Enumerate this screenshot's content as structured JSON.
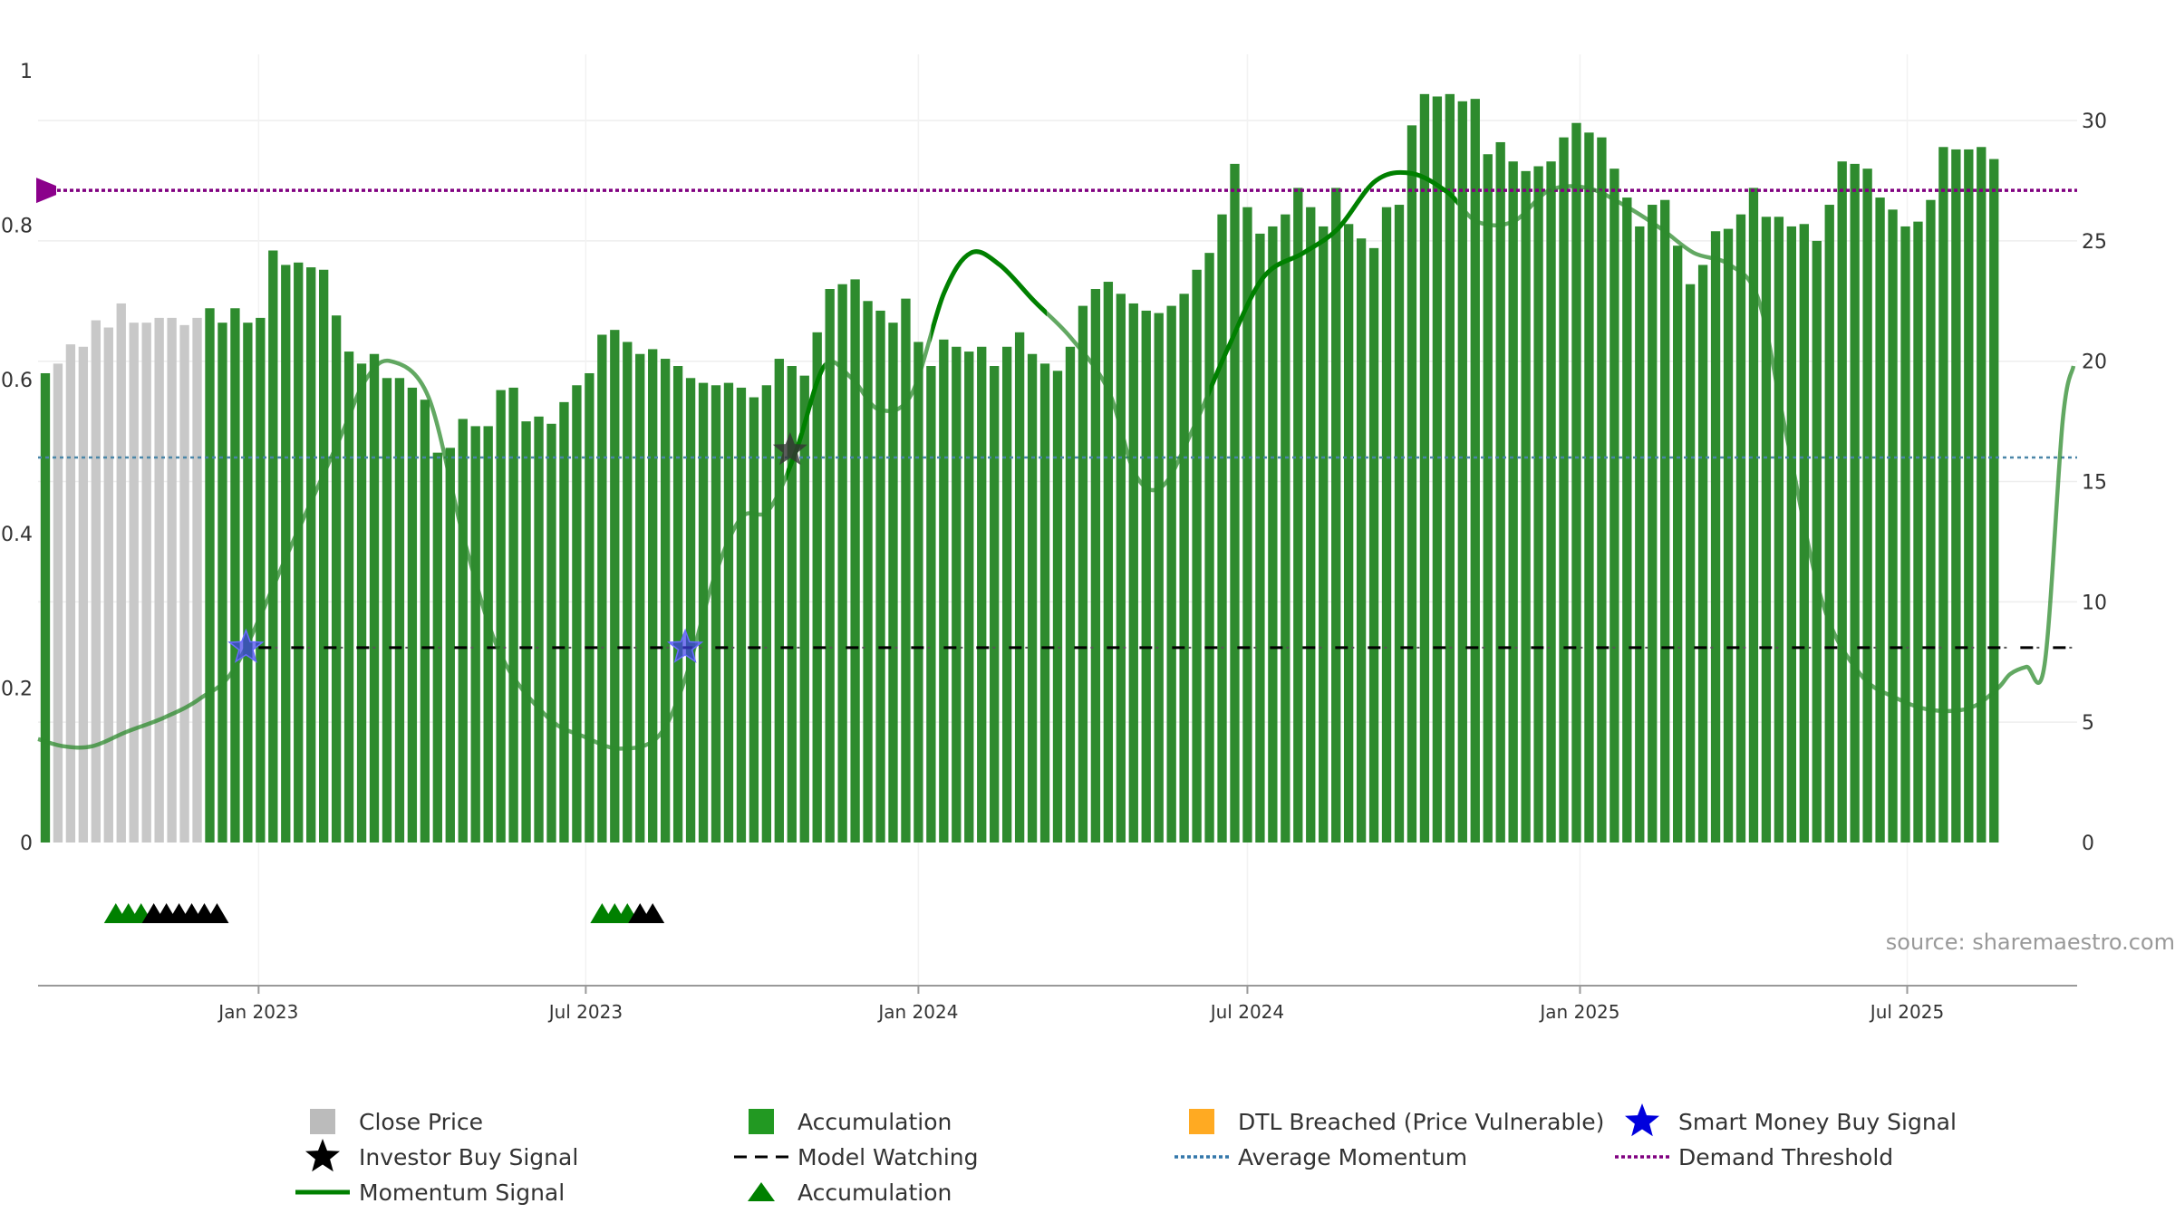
{
  "chart_data": {
    "type": "bar",
    "source_text": "source: sharemaestro.com",
    "y_left": {
      "ticks": [
        0,
        0.2,
        0.4,
        0.6,
        0.8,
        1
      ],
      "tick_labels": [
        "0",
        "0.2",
        "0.4",
        "0.6",
        "0.8",
        "1"
      ],
      "range": [
        0,
        1
      ]
    },
    "y_right": {
      "ticks": [
        0,
        5,
        10,
        15,
        20,
        25,
        30
      ],
      "tick_labels": [
        "0",
        "5",
        "10",
        "15",
        "20",
        "25",
        "30"
      ],
      "range": [
        0,
        32.75
      ]
    },
    "x_range": [
      "2022-09-01",
      "2025-10-03"
    ],
    "x_ticks": [
      {
        "date": "2023-01-01",
        "label": "Jan 2023"
      },
      {
        "date": "2023-07-01",
        "label": "Jul 2023"
      },
      {
        "date": "2024-01-01",
        "label": "Jan 2024"
      },
      {
        "date": "2024-07-01",
        "label": "Jul 2024"
      },
      {
        "date": "2025-01-01",
        "label": "Jan 2025"
      },
      {
        "date": "2025-07-01",
        "label": "Jul 2025"
      }
    ],
    "bar_start_date": "2022-09-05",
    "bar_interval_days": 7,
    "close_price": [
      19.5,
      19.9,
      20.7,
      20.6,
      21.7,
      21.4,
      22.4,
      21.6,
      21.6,
      21.8,
      21.8,
      21.5,
      21.8,
      22.2,
      21.6,
      22.2,
      21.6,
      21.8,
      24.6,
      24.0,
      24.1,
      23.9,
      23.8,
      21.9,
      20.4,
      19.9,
      20.3,
      19.3,
      19.3,
      18.9,
      18.4,
      16.2,
      16.4,
      17.6,
      17.3,
      17.3,
      18.8,
      18.9,
      17.5,
      17.7,
      17.4,
      18.3,
      19.0,
      19.5,
      21.1,
      21.3,
      20.8,
      20.3,
      20.5,
      20.1,
      19.8,
      19.3,
      19.1,
      19.0,
      19.1,
      18.9,
      18.5,
      19.0,
      20.1,
      19.8,
      19.4,
      21.2,
      23.0,
      23.2,
      23.4,
      22.5,
      22.1,
      21.6,
      22.6,
      20.8,
      19.8,
      20.9,
      20.6,
      20.4,
      20.6,
      19.8,
      20.6,
      21.2,
      20.3,
      19.9,
      19.6,
      20.6,
      22.3,
      23.0,
      23.3,
      22.8,
      22.4,
      22.1,
      22.0,
      22.3,
      22.8,
      23.8,
      24.5,
      26.1,
      28.2,
      26.4,
      25.3,
      25.6,
      26.1,
      27.2,
      26.4,
      25.6,
      27.2,
      25.7,
      25.1,
      24.7,
      26.4,
      26.5,
      29.8,
      31.1,
      31.0,
      31.1,
      30.8,
      30.9,
      28.6,
      29.1,
      28.3,
      27.9,
      28.1,
      28.3,
      29.3,
      29.9,
      29.5,
      29.3,
      28.0,
      26.8,
      25.6,
      26.5,
      26.7,
      24.8,
      23.2,
      24.0,
      25.4,
      25.5,
      26.1,
      27.2,
      26.0,
      26.0,
      25.6,
      25.7,
      25.0,
      26.5,
      28.3,
      28.2,
      28.0,
      26.8,
      26.3,
      25.6,
      25.8,
      26.7,
      28.9,
      28.8,
      28.8,
      28.9,
      28.4
    ],
    "bar_state": "aggggggggggggaaaaaaaaaaaaaaaaaaaaaaaaaaaaaaaaaaaaaaaaaaaaaaaaaaaaaaaaaaaaaaaaaaaaaaaaaaaaaaaaaaaaaaaaaaaaaaaaaaaaaaaaaaaaaaaaaaaaaaaaaaaaaaaaaaaaaaaaaaaaaa",
    "momentum_signal": {
      "dates": [
        "2022-09-01",
        "2022-09-15",
        "2022-10-01",
        "2022-10-20",
        "2022-11-10",
        "2022-11-30",
        "2022-12-20",
        "2023-01-20",
        "2023-02-15",
        "2023-03-01",
        "2023-03-15",
        "2023-04-05",
        "2023-04-25",
        "2023-05-15",
        "2023-06-10",
        "2023-06-30",
        "2023-07-20",
        "2023-08-10",
        "2023-08-25",
        "2023-09-10",
        "2023-09-25",
        "2023-10-10",
        "2023-10-25",
        "2023-11-10",
        "2023-11-25",
        "2023-12-10",
        "2023-12-28",
        "2024-01-15",
        "2024-01-30",
        "2024-02-15",
        "2024-03-05",
        "2024-03-25",
        "2024-04-15",
        "2024-04-30",
        "2024-05-15",
        "2024-06-01",
        "2024-06-20",
        "2024-07-10",
        "2024-08-01",
        "2024-08-20",
        "2024-09-10",
        "2024-09-30",
        "2024-10-20",
        "2024-11-05",
        "2024-11-25",
        "2024-12-15",
        "2025-01-05",
        "2025-01-25",
        "2025-02-15",
        "2025-03-05",
        "2025-03-25",
        "2025-04-10",
        "2025-04-25",
        "2025-05-15",
        "2025-06-05",
        "2025-06-25",
        "2025-07-15",
        "2025-08-05",
        "2025-08-20",
        "2025-08-27",
        "2025-09-05",
        "2025-09-15",
        "2025-09-25",
        "2025-10-01"
      ],
      "values": [
        4.3,
        4.0,
        4.0,
        4.6,
        5.2,
        6.0,
        7.4,
        12.5,
        16.8,
        19.2,
        20.0,
        18.5,
        12.5,
        7.8,
        5.2,
        4.4,
        3.9,
        4.4,
        6.8,
        11.0,
        13.5,
        13.8,
        16.2,
        19.8,
        19.3,
        18.0,
        18.6,
        22.8,
        24.5,
        24.0,
        22.5,
        21.0,
        18.8,
        15.3,
        14.8,
        17.2,
        20.5,
        23.5,
        24.5,
        25.5,
        27.5,
        27.8,
        27.0,
        25.8,
        25.8,
        27.1,
        27.2,
        26.5,
        25.5,
        24.5,
        24.0,
        22.5,
        17.0,
        10.0,
        7.0,
        6.0,
        5.5,
        5.6,
        6.4,
        7.0,
        7.3,
        7.4,
        17.5,
        19.8
      ],
      "bright_segments": [
        [
          "2023-10-20",
          "2023-11-10"
        ],
        [
          "2024-01-08",
          "2024-03-12"
        ],
        [
          "2024-06-10",
          "2024-10-25"
        ]
      ]
    },
    "average_momentum": 16.0,
    "demand_threshold": 27.1,
    "model_watching_level": 8.1,
    "model_watching_start": "2023-01-01",
    "investor_buy_signals": [
      {
        "date": "2023-10-22",
        "value": 16.3
      }
    ],
    "smart_money_buy_signals": [
      {
        "date": "2022-12-25",
        "value": 8.1
      },
      {
        "date": "2023-08-25",
        "value": 8.1
      }
    ],
    "triangle_markers": [
      {
        "date": "2022-10-14",
        "color": "green"
      },
      {
        "date": "2022-10-21",
        "color": "green"
      },
      {
        "date": "2022-10-28",
        "color": "green"
      },
      {
        "date": "2022-11-04",
        "color": "black"
      },
      {
        "date": "2022-11-11",
        "color": "black"
      },
      {
        "date": "2022-11-18",
        "color": "black"
      },
      {
        "date": "2022-11-25",
        "color": "black"
      },
      {
        "date": "2022-12-02",
        "color": "black"
      },
      {
        "date": "2022-12-09",
        "color": "black"
      },
      {
        "date": "2023-07-10",
        "color": "green"
      },
      {
        "date": "2023-07-17",
        "color": "green"
      },
      {
        "date": "2023-07-24",
        "color": "green"
      },
      {
        "date": "2023-07-31",
        "color": "black"
      },
      {
        "date": "2023-08-07",
        "color": "black"
      }
    ],
    "colors": {
      "close_price": "#c8c8c8",
      "accumulation": "#2e8b2e",
      "dtl_breached": "#ffd58a",
      "momentum": "#2e8b2e",
      "momentum_bright": "#008000",
      "average_momentum": "#4a86a8",
      "demand_threshold": "#800080",
      "smart_money": "#0000dd",
      "investor": "#000000"
    },
    "legend": [
      {
        "label": "Close Price",
        "symbol": "square",
        "color": "#bbbbbb"
      },
      {
        "label": "Accumulation",
        "symbol": "square",
        "color": "#229922"
      },
      {
        "label": "DTL Breached (Price Vulnerable)",
        "symbol": "square",
        "color": "#ffaa22"
      },
      {
        "label": "Smart Money Buy Signal",
        "symbol": "star",
        "color": "#0000dd"
      },
      {
        "label": "Investor Buy Signal",
        "symbol": "star",
        "color": "#000000"
      },
      {
        "label": "Model Watching",
        "symbol": "dash",
        "color": "#000000"
      },
      {
        "label": "Average Momentum",
        "symbol": "dot",
        "color": "#3377aa"
      },
      {
        "label": "Demand Threshold",
        "symbol": "dot",
        "color": "#800080"
      },
      {
        "label": "Momentum Signal",
        "symbol": "line",
        "color": "#008000"
      },
      {
        "label": "Accumulation",
        "symbol": "triangle",
        "color": "#008000"
      }
    ]
  }
}
